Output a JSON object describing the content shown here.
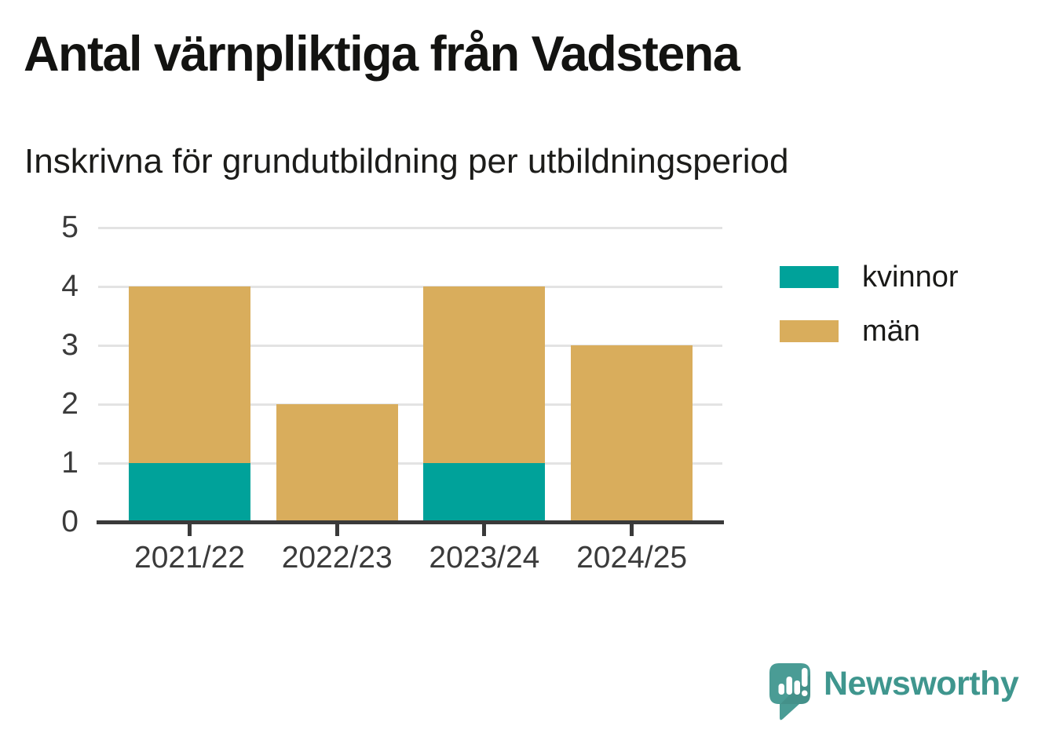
{
  "title": "Antal värnpliktiga från Vadstena",
  "subtitle": "Inskrivna för grundutbildning per utbildningsperiod",
  "chart_data": {
    "type": "bar",
    "stacked": true,
    "title": "Antal värnpliktiga från Vadstena",
    "subtitle": "Inskrivna för grundutbildning per utbildningsperiod",
    "categories": [
      "2021/22",
      "2022/23",
      "2023/24",
      "2024/25"
    ],
    "series": [
      {
        "name": "kvinnor",
        "color": "#00a29a",
        "values": [
          1,
          0,
          1,
          0
        ]
      },
      {
        "name": "män",
        "color": "#d9ad5c",
        "values": [
          3,
          2,
          3,
          3
        ]
      }
    ],
    "totals": [
      4,
      2,
      4,
      3
    ],
    "xlabel": "",
    "ylabel": "",
    "ylim": [
      0,
      5
    ],
    "yticks": [
      0,
      1,
      2,
      3,
      4,
      5
    ],
    "grid": true,
    "legend_position": "right-top"
  },
  "legend": {
    "items": [
      {
        "label": "kvinnor",
        "color": "#00a29a"
      },
      {
        "label": "män",
        "color": "#d9ad5c"
      }
    ]
  },
  "branding": {
    "name": "Newsworthy"
  },
  "colors": {
    "kvinnor": "#00a29a",
    "man": "#d9ad5c",
    "grid": "#e3e3e3",
    "axis": "#3a3a3a",
    "text": "#131311",
    "brand_text": "#3f968e",
    "brand_icon": "#4a9c95"
  }
}
